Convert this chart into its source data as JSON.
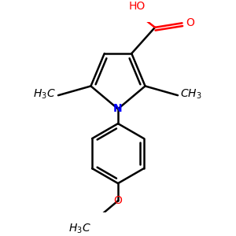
{
  "bg_color": "#ffffff",
  "bond_color": "#000000",
  "n_color": "#0000ff",
  "o_color": "#ff0000",
  "line_width": 1.8,
  "figsize": [
    3.0,
    3.0
  ],
  "dpi": 100,
  "xlim": [
    -1.5,
    1.5
  ],
  "ylim": [
    -1.9,
    1.6
  ]
}
